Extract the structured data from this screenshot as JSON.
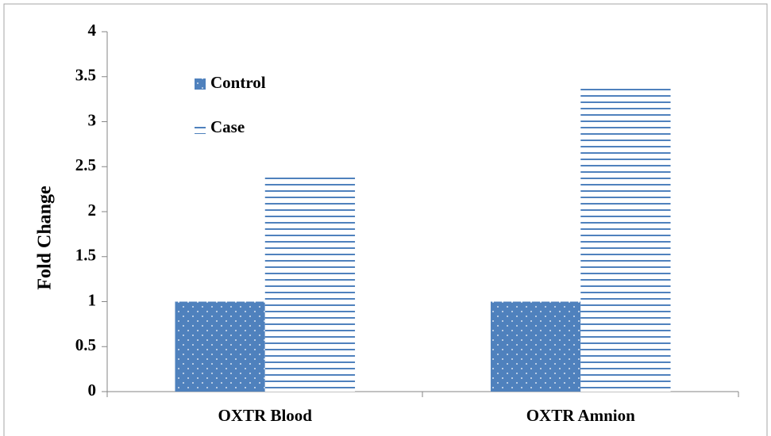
{
  "chart_data": {
    "type": "bar",
    "categories": [
      "OXTR Blood",
      "OXTR Amnion"
    ],
    "series": [
      {
        "name": "Control",
        "color": "#4f81bd",
        "pattern": "dots",
        "values": [
          1,
          1
        ]
      },
      {
        "name": "Case",
        "color": "#4f81bd",
        "pattern": "hlines",
        "values": [
          2.43,
          3.41
        ]
      }
    ],
    "ylabel": "Fold Change",
    "ylim": [
      0,
      4
    ],
    "yticks": [
      0,
      0.5,
      1,
      1.5,
      2,
      2.5,
      3,
      3.5,
      4
    ],
    "legend": "top-left",
    "grid": false
  }
}
